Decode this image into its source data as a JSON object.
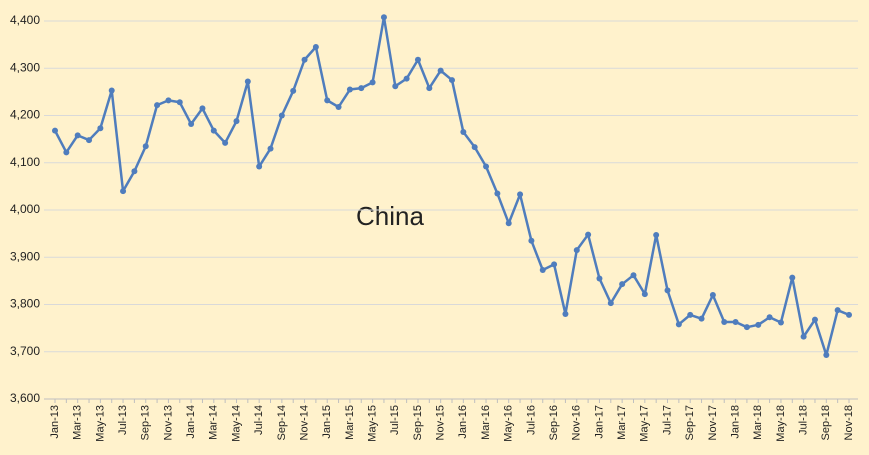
{
  "chart_data": {
    "type": "line",
    "annotation": "China",
    "categories": [
      "Jan-13",
      null,
      "Mar-13",
      null,
      "May-13",
      null,
      "Jul-13",
      null,
      "Sep-13",
      null,
      "Nov-13",
      null,
      "Jan-14",
      null,
      "Mar-14",
      null,
      "May-14",
      null,
      "Jul-14",
      null,
      "Sep-14",
      null,
      "Nov-14",
      null,
      "Jan-15",
      null,
      "Mar-15",
      null,
      "May-15",
      null,
      "Jul-15",
      null,
      "Sep-15",
      null,
      "Nov-15",
      null,
      "Jan-16",
      null,
      "Mar-16",
      null,
      "May-16",
      null,
      "Jul-16",
      null,
      "Sep-16",
      null,
      "Nov-16",
      null,
      "Jan-17",
      null,
      "Mar-17",
      null,
      "May-17",
      null,
      "Jul-17",
      null,
      "Sep-17",
      null,
      "Nov-17",
      null,
      "Jan-18",
      null,
      "Mar-18",
      null,
      "May-18",
      null,
      "Jul-18",
      null,
      "Sep-18",
      null,
      "Nov-18"
    ],
    "values": [
      4168,
      4122,
      4158,
      4148,
      4173,
      4253,
      4040,
      4082,
      4135,
      4222,
      4232,
      4228,
      4182,
      4215,
      4168,
      4142,
      4188,
      4272,
      4092,
      4130,
      4200,
      4252,
      4318,
      4345,
      4232,
      4218,
      4255,
      4258,
      4270,
      4408,
      4262,
      4278,
      4318,
      4258,
      4295,
      4275,
      4165,
      4133,
      4092,
      4035,
      3972,
      4033,
      3935,
      3873,
      3885,
      3780,
      3915,
      3948,
      3855,
      3803,
      3843,
      3862,
      3822,
      3947,
      3830,
      3758,
      3778,
      3770,
      3820,
      3763,
      3763,
      3752,
      3757,
      3773,
      3762,
      3857,
      3732,
      3768,
      3693,
      3788,
      3778
    ],
    "color": "#4f7dbd",
    "ylim": [
      3600,
      4400
    ],
    "yticks": [
      {
        "value": 3600,
        "label": "3,600"
      },
      {
        "value": 3700,
        "label": "3,700"
      },
      {
        "value": 3800,
        "label": "3,800"
      },
      {
        "value": 3900,
        "label": "3,900"
      },
      {
        "value": 4000,
        "label": "4,000"
      },
      {
        "value": 4100,
        "label": "4,100"
      },
      {
        "value": 4200,
        "label": "4,200"
      },
      {
        "value": 4300,
        "label": "4,300"
      },
      {
        "value": 4400,
        "label": "4,400"
      }
    ],
    "grid": true
  }
}
